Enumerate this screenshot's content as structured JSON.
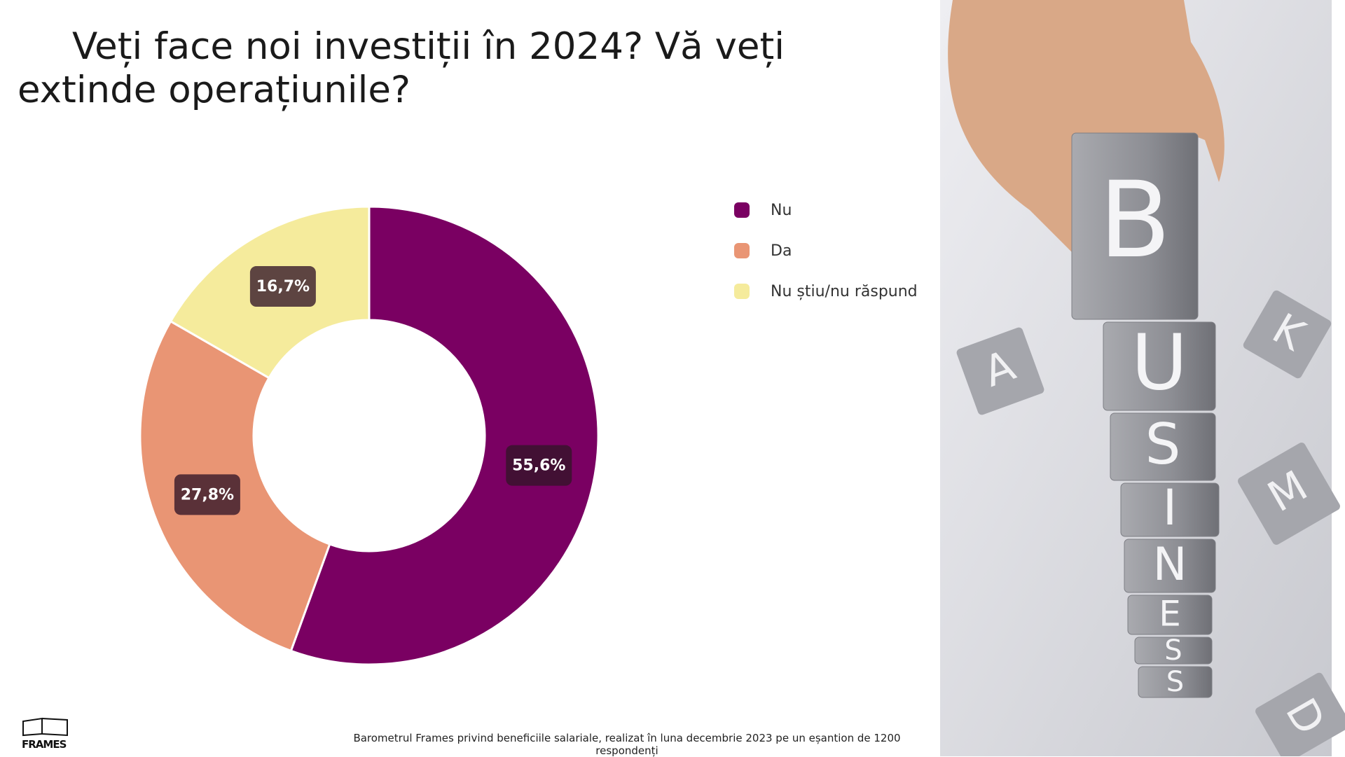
{
  "chart_data": {
    "type": "donut",
    "title": "Veți face noi investiții în 2024? Vă veți extinde operațiunile?",
    "categories": [
      "Nu",
      "Da",
      "Nu știu/nu răspund"
    ],
    "values": [
      55.6,
      27.8,
      16.7
    ],
    "value_labels": [
      "55,6%",
      "27,8%",
      "16,7%"
    ],
    "colors": [
      "#7a0062",
      "#e99574",
      "#f5eb9c"
    ],
    "legend": "right"
  },
  "footer": {
    "source": "Barometrul Frames privind beneficiile salariale, realizat în luna decembrie 2023 pe un eșantion de 1200 respondenți",
    "logo": "FRAMES"
  },
  "image": {
    "letters": [
      "B",
      "U",
      "S",
      "I",
      "N",
      "E",
      "S",
      "S"
    ],
    "background_letters": [
      "A",
      "K",
      "M",
      "D"
    ]
  }
}
